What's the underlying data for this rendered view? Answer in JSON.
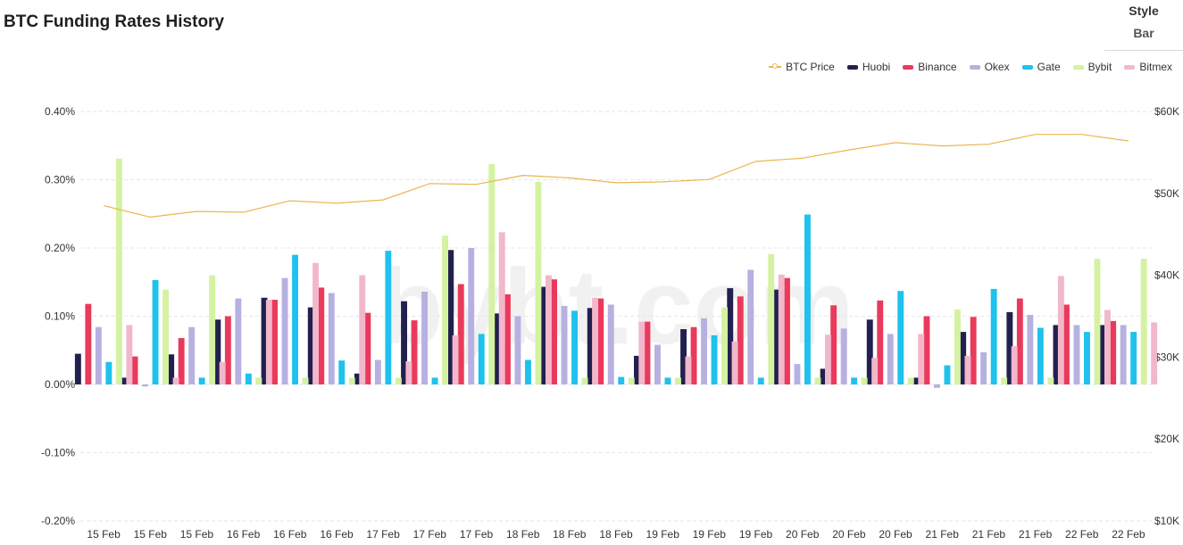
{
  "title": "BTC Funding Rates History",
  "style_control": {
    "label": "Style",
    "value": "Bar"
  },
  "watermark": "bybt.com",
  "colors": {
    "BTC Price": "#e8b64c",
    "Huobi": "#22204f",
    "Binance": "#ea3a5c",
    "Okex": "#b6b1e0",
    "Gate": "#1ec2ec",
    "Bybit": "#d4f2a2",
    "Bitmex": "#f2b7cb"
  },
  "chart_data": {
    "type": "bar",
    "title": "BTC Funding Rates History",
    "categories": [
      "15 Feb",
      "15 Feb",
      "15 Feb",
      "16 Feb",
      "16 Feb",
      "16 Feb",
      "17 Feb",
      "17 Feb",
      "17 Feb",
      "18 Feb",
      "18 Feb",
      "18 Feb",
      "19 Feb",
      "19 Feb",
      "19 Feb",
      "20 Feb",
      "20 Feb",
      "20 Feb",
      "21 Feb",
      "21 Feb",
      "21 Feb",
      "22 Feb",
      "22 Feb"
    ],
    "y_ticks": [
      "0.40%",
      "0.30%",
      "0.20%",
      "0.10%",
      "0.00%",
      "-0.10%",
      "-0.20%"
    ],
    "y2_ticks": [
      "$60K",
      "$50K",
      "$40K",
      "$30K",
      "$20K",
      "$10K"
    ],
    "ylim": [
      -0.2,
      0.4
    ],
    "y2lim": [
      10000,
      60000
    ],
    "legend_position": "top-right",
    "grid": true,
    "series": [
      {
        "name": "Huobi",
        "values": [
          0.045,
          0.01,
          0.044,
          0.095,
          0.127,
          0.113,
          0.016,
          0.122,
          0.197,
          0.104,
          0.143,
          0.112,
          0.042,
          0.081,
          0.141,
          0.139,
          0.023,
          0.095,
          0.01,
          0.077,
          0.106,
          0.087,
          0.087
        ]
      },
      {
        "name": "Binance",
        "values": [
          0.118,
          0.041,
          0.068,
          0.1,
          0.124,
          0.142,
          0.105,
          0.094,
          0.147,
          0.132,
          0.154,
          0.126,
          0.092,
          0.084,
          0.129,
          0.156,
          0.116,
          0.123,
          0.1,
          0.099,
          0.126,
          0.117,
          0.093
        ]
      },
      {
        "name": "Okex",
        "values": [
          0.084,
          -0.003,
          0.084,
          0.126,
          0.156,
          0.134,
          0.036,
          0.136,
          0.2,
          0.1,
          0.115,
          0.117,
          0.058,
          0.097,
          0.168,
          0.03,
          0.082,
          0.074,
          -0.005,
          0.047,
          0.102,
          0.087,
          0.087
        ]
      },
      {
        "name": "Gate",
        "values": [
          0.033,
          0.153,
          0.01,
          0.016,
          0.19,
          0.035,
          0.196,
          0.01,
          0.074,
          0.036,
          0.108,
          0.011,
          0.01,
          0.072,
          0.01,
          0.249,
          0.01,
          0.137,
          0.028,
          0.14,
          0.083,
          0.077,
          0.077
        ]
      },
      {
        "name": "Bybit",
        "values": [
          0.331,
          0.139,
          0.16,
          0.01,
          0.01,
          0.01,
          0.01,
          0.218,
          0.323,
          0.297,
          0.01,
          0.01,
          0.01,
          0.113,
          0.191,
          0.01,
          0.01,
          0.01,
          0.11,
          0.01,
          0.01,
          0.184,
          0.184
        ]
      },
      {
        "name": "Bitmex",
        "values": [
          0.087,
          0.01,
          0.033,
          0.124,
          0.178,
          0.16,
          0.034,
          0.072,
          0.223,
          0.16,
          0.127,
          0.092,
          0.041,
          0.063,
          0.161,
          0.073,
          0.039,
          0.074,
          0.042,
          0.056,
          0.159,
          0.109,
          0.091
        ]
      },
      {
        "name": "BTC Price",
        "type": "line",
        "axis": "y2",
        "values": [
          48500,
          47100,
          47800,
          47700,
          49100,
          48800,
          49200,
          51200,
          51100,
          52200,
          51900,
          51300,
          51400,
          51700,
          53900,
          54300,
          55300,
          56200,
          55800,
          56000,
          57200,
          57200,
          56400
        ]
      }
    ]
  }
}
